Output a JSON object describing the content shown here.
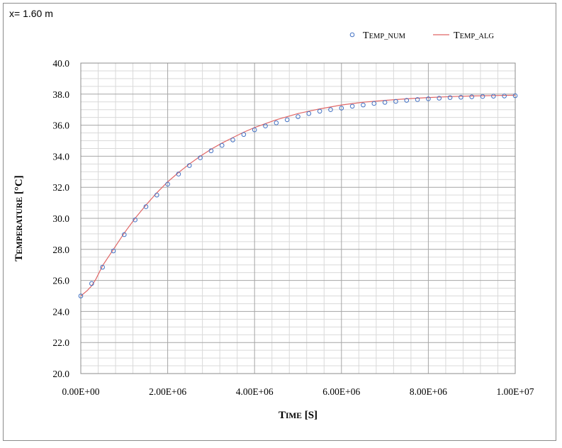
{
  "subtitle": "x= 1.60 m",
  "chart_data": {
    "type": "line",
    "xlabel": {
      "big": "T",
      "small": "IME",
      "tail": " [S]"
    },
    "ylabel": {
      "big": "T",
      "small": "EMPERATURE",
      "tail": " [°C]"
    },
    "xlim": [
      0,
      10000000
    ],
    "ylim": [
      20,
      40
    ],
    "x_tick_labels": [
      "0.00E+00",
      "2.00E+06",
      "4.00E+06",
      "6.00E+06",
      "8.00E+06",
      "1.00E+07"
    ],
    "y_tick_labels": [
      "20.0",
      "22.0",
      "24.0",
      "26.0",
      "28.0",
      "30.0",
      "32.0",
      "34.0",
      "36.0",
      "38.0",
      "40.0"
    ],
    "grid": true,
    "legend_position": "top-right",
    "series": [
      {
        "name": {
          "big": "T",
          "small": "EMP_NUM"
        },
        "style": "markers",
        "color": "#4472c4",
        "x": [
          0,
          250000,
          500000,
          750000,
          1000000,
          1250000,
          1500000,
          1750000,
          2000000,
          2250000,
          2500000,
          2750000,
          3000000,
          3250000,
          3500000,
          3750000,
          4000000,
          4250000,
          4500000,
          4750000,
          5000000,
          5250000,
          5500000,
          5750000,
          6000000,
          6250000,
          6500000,
          6750000,
          7000000,
          7250000,
          7500000,
          7750000,
          8000000,
          8250000,
          8500000,
          8750000,
          9000000,
          9250000,
          9500000,
          9750000,
          10000000
        ],
        "y": [
          25.0,
          25.8,
          26.85,
          27.9,
          28.95,
          29.9,
          30.75,
          31.5,
          32.2,
          32.85,
          33.4,
          33.9,
          34.35,
          34.7,
          35.05,
          35.4,
          35.7,
          35.95,
          36.15,
          36.35,
          36.55,
          36.75,
          36.9,
          37.0,
          37.1,
          37.22,
          37.3,
          37.4,
          37.47,
          37.53,
          37.6,
          37.65,
          37.7,
          37.74,
          37.78,
          37.8,
          37.83,
          37.85,
          37.87,
          37.88,
          37.9
        ]
      },
      {
        "name": {
          "big": "T",
          "small": "EMP_ALG"
        },
        "style": "line",
        "color": "#e06666",
        "x": [
          0,
          150000,
          250000,
          350000,
          500000,
          750000,
          1000000,
          1250000,
          1500000,
          1750000,
          2000000,
          2250000,
          2500000,
          2750000,
          3000000,
          3250000,
          3500000,
          3750000,
          4000000,
          4500000,
          5000000,
          5500000,
          6000000,
          6500000,
          7000000,
          7500000,
          8000000,
          8500000,
          9000000,
          9500000,
          10000000
        ],
        "y": [
          25.0,
          25.35,
          25.65,
          26.1,
          26.95,
          28.0,
          29.05,
          30.0,
          30.85,
          31.65,
          32.35,
          32.95,
          33.5,
          34.0,
          34.45,
          34.85,
          35.2,
          35.55,
          35.85,
          36.35,
          36.75,
          37.05,
          37.3,
          37.48,
          37.6,
          37.7,
          37.78,
          37.84,
          37.88,
          37.91,
          37.93
        ]
      }
    ]
  }
}
